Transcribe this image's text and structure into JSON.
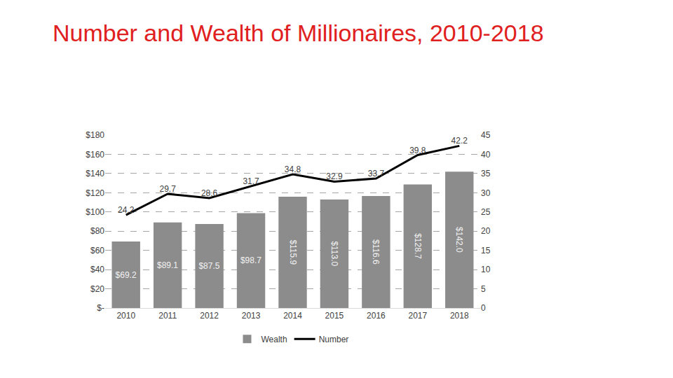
{
  "chart_data": {
    "type": "bar",
    "title": "Number and Wealth of Millionaires, 2010-2018",
    "categories": [
      "2010",
      "2011",
      "2012",
      "2013",
      "2014",
      "2015",
      "2016",
      "2017",
      "2018"
    ],
    "series": [
      {
        "name": "Wealth",
        "type": "bar",
        "color": "#8c8c8c",
        "values": [
          69.2,
          89.1,
          87.5,
          98.7,
          115.9,
          113.0,
          116.6,
          128.7,
          142.0
        ],
        "value_labels": [
          "$69.2",
          "$89.1",
          "$87.5",
          "$98.7",
          "$115.9",
          "$113.0",
          "$116.6",
          "$128.7",
          "$142.0"
        ]
      },
      {
        "name": "Number",
        "type": "line",
        "color": "#000000",
        "axis": "y2",
        "values": [
          24.2,
          29.7,
          28.6,
          31.7,
          34.8,
          32.9,
          33.7,
          39.8,
          42.2
        ]
      }
    ],
    "ylim": [
      0,
      180
    ],
    "yticks": [
      {
        "value": 0,
        "label": "$-"
      },
      {
        "value": 20,
        "label": "$20"
      },
      {
        "value": 40,
        "label": "$40"
      },
      {
        "value": 60,
        "label": "$60"
      },
      {
        "value": 80,
        "label": "$80"
      },
      {
        "value": 100,
        "label": "$100"
      },
      {
        "value": 120,
        "label": "$120"
      },
      {
        "value": 140,
        "label": "$140"
      },
      {
        "value": 160,
        "label": "$160"
      },
      {
        "value": 180,
        "label": "$180"
      }
    ],
    "y2lim": [
      0,
      45
    ],
    "y2ticks": [
      0,
      5,
      10,
      15,
      20,
      25,
      30,
      35,
      40,
      45
    ],
    "grid": true,
    "legend": "bottom",
    "data_labels": true
  }
}
